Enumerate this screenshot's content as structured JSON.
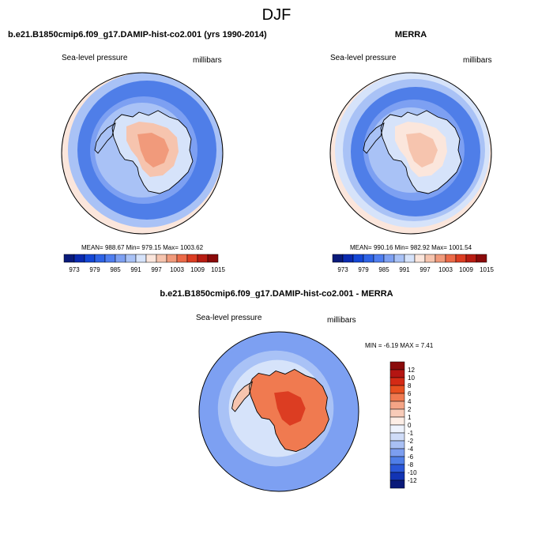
{
  "page": {
    "title": "DJF"
  },
  "panels": [
    {
      "id": "model",
      "title": "b.e21.B1850cmip6.f09_g17.DAMIP-hist-co2.001 (yrs 1990-2014)",
      "left_label": "Sea-level pressure",
      "right_label": "millibars",
      "stats": "MEAN= 988.67   Min= 979.15   Max= 1003.62"
    },
    {
      "id": "obs",
      "title": "MERRA",
      "left_label": "Sea-level pressure",
      "right_label": "millibars",
      "stats": "MEAN= 990.16   Min= 982.92   Max= 1001.54"
    },
    {
      "id": "diff",
      "title": "b.e21.B1850cmip6.f09_g17.DAMIP-hist-co2.001 - MERRA",
      "left_label": "Sea-level pressure",
      "right_label": "millibars",
      "stats": "MIN =  -6.19 MAX =   7.41"
    }
  ],
  "colorbar_abs": {
    "colors": [
      "#0a1a7a",
      "#0a2ab0",
      "#1447d6",
      "#2e63e6",
      "#4f7ef0",
      "#7da0f2",
      "#a9c2f6",
      "#d6e3fa",
      "#fbe6dc",
      "#f6c4ae",
      "#f19a7b",
      "#ec6a48",
      "#dc3d22",
      "#b81c12",
      "#8a0a0a"
    ],
    "labels": [
      "973",
      "979",
      "985",
      "991",
      "997",
      "1003",
      "1009",
      "1015"
    ]
  },
  "colorbar_diff": {
    "colors": [
      "#8a0a0a",
      "#b41512",
      "#d42a15",
      "#e85020",
      "#f07a50",
      "#f4a486",
      "#f8cbb8",
      "#fdeee6",
      "#eef3fd",
      "#cfdcf8",
      "#a9c0f4",
      "#7c9ef0",
      "#4f7ee8",
      "#2a57d8",
      "#1234b4",
      "#0a1a7a"
    ],
    "labels": [
      "12",
      "10",
      "8",
      "6",
      "4",
      "2",
      "1",
      "0",
      "-1",
      "-2",
      "-4",
      "-6",
      "-8",
      "-10",
      "-12"
    ]
  },
  "map_colors": {
    "ocean_low": "#4f7ee8",
    "ocean_mid": "#7da0f2",
    "ocean_light": "#a9c2f6",
    "near_zero": "#d6e3fa",
    "warm_light": "#fbe6dc",
    "warm_mid": "#f6c4ae",
    "warm_strong": "#f19a7b",
    "diff_ocean": "#7da0f2",
    "diff_pos_light": "#f6c4ae",
    "diff_pos_mid": "#f07a50",
    "diff_pos_strong": "#dc3d22"
  }
}
